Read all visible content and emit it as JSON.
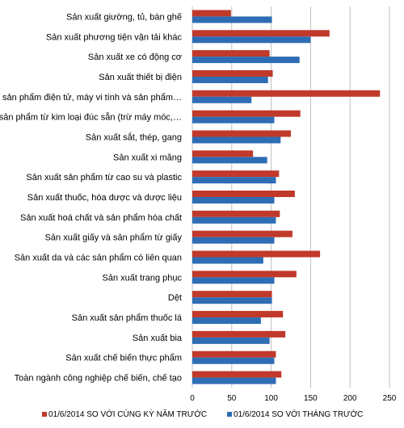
{
  "chart_data": {
    "type": "bar",
    "orientation": "horizontal",
    "categories": [
      "Sản xuất giường, tủ, bàn ghế",
      "Sản xuất phương tiện vận tải khác",
      "Sản xuất xe có động cơ",
      "Sản xuất thiết bị điện",
      "SX sản phẩm điện tử, máy vi tính và sản phẩm…",
      "SX sản phẩm từ kim loại đúc sẵn (trừ máy móc,…",
      "Sản xuất sắt, thép, gang",
      "Sản xuất xi măng",
      "Sản xuất sản phẩm từ cao su và plastic",
      "Sản xuất thuốc, hóa dược và dược liệu",
      "Sản xuất hoá chất và sản phẩm hóa chất",
      "Sản xuất giấy và sản phẩm từ giấy",
      "Sản xuất da và các sản phẩm có liên quan",
      "Sản xuất trang phục",
      "Dệt",
      "Sản xuất sản phẩm thuốc lá",
      "Sản xuất bia",
      "Sản xuất chế biến thực phẩm",
      "Toàn ngành công nghiệp chế biến, chế tạo"
    ],
    "series": [
      {
        "name": "01/6/2014 SO VỚI CÙNG KỲ NĂM TRƯỚC",
        "color": "#C0392B",
        "values": [
          49,
          174,
          98,
          102,
          238,
          137,
          125,
          77,
          110,
          130,
          111,
          127,
          162,
          132,
          101,
          115,
          118,
          106,
          113
        ]
      },
      {
        "name": "01/6/2014 SO VỚI THÁNG TRƯỚC",
        "color": "#2E6DB4",
        "values": [
          101,
          150,
          136,
          96,
          75,
          104,
          112,
          95,
          106,
          104,
          106,
          104,
          90,
          104,
          101,
          87,
          98,
          104,
          106
        ]
      }
    ],
    "xlim": [
      0,
      250
    ],
    "xticks": [
      "0",
      "50",
      "100",
      "150",
      "200",
      "250"
    ],
    "grid": true,
    "legend": "bottom"
  }
}
